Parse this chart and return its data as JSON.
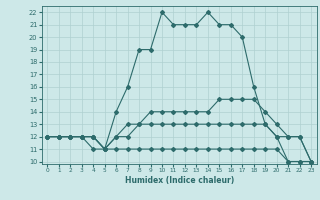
{
  "xlabel": "Humidex (Indice chaleur)",
  "x_values": [
    0,
    1,
    2,
    3,
    4,
    5,
    6,
    7,
    8,
    9,
    10,
    11,
    12,
    13,
    14,
    15,
    16,
    17,
    18,
    19,
    20,
    21,
    22,
    23
  ],
  "line1": [
    12,
    12,
    12,
    12,
    11,
    11,
    14,
    16,
    19,
    19,
    22,
    21,
    21,
    21,
    22,
    21,
    21,
    20,
    16,
    13,
    12,
    10,
    10,
    10
  ],
  "line2": [
    12,
    12,
    12,
    12,
    12,
    11,
    12,
    13,
    13,
    14,
    14,
    14,
    14,
    14,
    14,
    15,
    15,
    15,
    15,
    14,
    13,
    12,
    12,
    10
  ],
  "line3": [
    12,
    12,
    12,
    12,
    12,
    11,
    12,
    12,
    13,
    13,
    13,
    13,
    13,
    13,
    13,
    13,
    13,
    13,
    13,
    13,
    12,
    12,
    12,
    10
  ],
  "line4": [
    12,
    12,
    12,
    12,
    12,
    11,
    11,
    11,
    11,
    11,
    11,
    11,
    11,
    11,
    11,
    11,
    11,
    11,
    11,
    11,
    11,
    10,
    10,
    10
  ],
  "line_color": "#2d6b6b",
  "bg_color": "#cde8e8",
  "grid_color": "#afd0d0",
  "ylim": [
    10,
    22
  ],
  "xlim": [
    0,
    23
  ]
}
